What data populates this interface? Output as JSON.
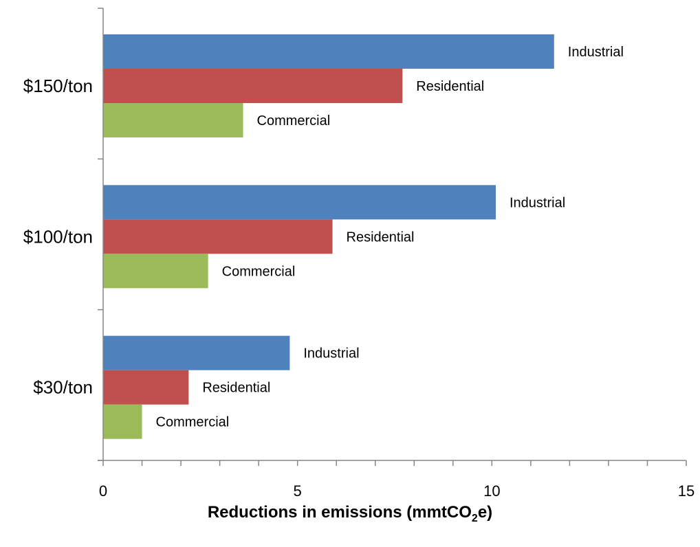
{
  "chart_data": {
    "type": "bar",
    "orientation": "horizontal",
    "categories": [
      "$150/ton",
      "$100/ton",
      "$30/ton"
    ],
    "series": [
      {
        "name": "Industrial",
        "color": "#4f81bd",
        "values": [
          11.6,
          10.1,
          4.8
        ]
      },
      {
        "name": "Residential",
        "color": "#c0504d",
        "values": [
          7.7,
          5.9,
          2.2
        ]
      },
      {
        "name": "Commercial",
        "color": "#9bbb59",
        "values": [
          3.6,
          2.7,
          1.0
        ]
      }
    ],
    "xlim": [
      0,
      15
    ],
    "x_ticks": [
      "0",
      "5",
      "10",
      "15"
    ],
    "xlabel": {
      "main": "Reductions in emissions (mmtCO",
      "subscript": "2",
      "suffix": "e)"
    },
    "ylabel": "",
    "title": "",
    "legend": "none (series names shown as bar labels)",
    "grid": false
  }
}
